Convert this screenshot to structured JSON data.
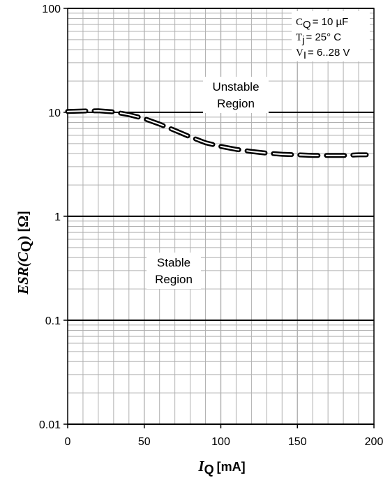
{
  "chart_data": {
    "type": "line",
    "x_axis": {
      "label_symbol": "I",
      "label_subscript": "Q",
      "label_unit": "[mA]",
      "min": 0,
      "max": 200,
      "ticks": [
        0,
        50,
        100,
        150,
        200
      ],
      "tick_labels": [
        "0",
        "50",
        "100",
        "150",
        "200"
      ],
      "minor_step": 10
    },
    "y_axis": {
      "label_prefix": "ESR(",
      "label_symbol": "C",
      "label_subscript": "Q",
      "label_suffix": ") [Ω]",
      "scale": "log",
      "min": 0.01,
      "max": 100,
      "ticks": [
        0.01,
        0.1,
        1,
        10,
        100
      ],
      "tick_labels": [
        "0.01",
        "0.1",
        "1",
        "10",
        "100"
      ]
    },
    "grid": true,
    "series": [
      {
        "style": "dashed",
        "x": [
          0,
          10,
          20,
          30,
          40,
          50,
          60,
          70,
          80,
          90,
          100,
          110,
          120,
          130,
          140,
          150,
          160,
          170,
          180,
          190,
          195
        ],
        "y": [
          10.2,
          10.3,
          10.35,
          10.1,
          9.5,
          8.7,
          7.7,
          6.7,
          5.8,
          5.1,
          4.7,
          4.4,
          4.2,
          4.05,
          3.95,
          3.9,
          3.85,
          3.85,
          3.85,
          3.9,
          3.9
        ]
      }
    ],
    "annotations": {
      "unstable_line1": "Unstable",
      "unstable_line2": "Region",
      "stable_line1": "Stable",
      "stable_line2": "Region"
    },
    "conditions": {
      "cq_symbol": "C",
      "cq_sub": "Q",
      "cq_value": "= 10 µF",
      "tj_symbol": "T",
      "tj_sub": "j",
      "tj_value": "= 25° C",
      "vi_symbol": "V",
      "vi_sub": "I",
      "vi_value": "= 6..28 V"
    },
    "colors": {
      "major_grid": "#000000",
      "minor_grid": "#b0b0b0",
      "line": "#000000",
      "line_fill": "#ffffff"
    }
  }
}
